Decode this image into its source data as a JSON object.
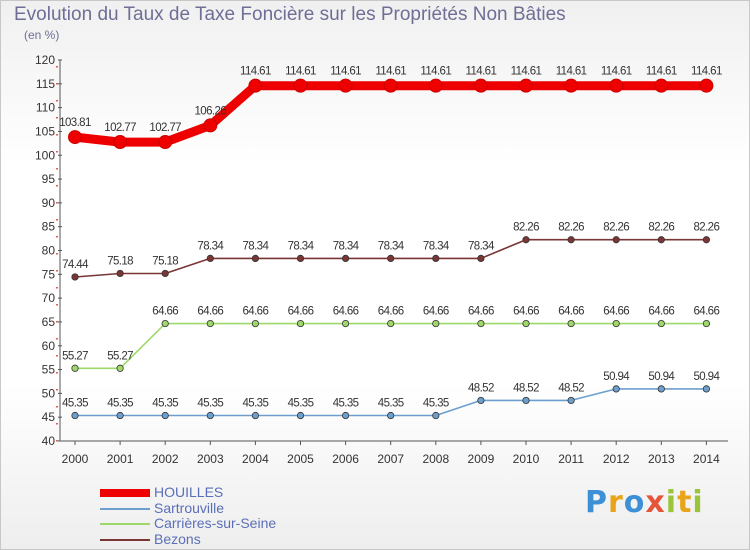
{
  "header": {
    "title": "Evolution du Taux de Taxe Foncière sur les Propriétés Non Bâties",
    "unit": "(en %)"
  },
  "logo": {
    "text": "Proxiti",
    "colors": [
      "#3d8fd6",
      "#e8a51a",
      "#3d8fd6",
      "#e5553a",
      "#9ac43a",
      "#e8a51a",
      "#9ac43a"
    ]
  },
  "chart_data": {
    "type": "line",
    "title": "Evolution du Taux de Taxe Foncière sur les Propriétés Non Bâties",
    "ylabel": "(en %)",
    "xlabel": "",
    "ylim": [
      40,
      120
    ],
    "yticks": [
      40,
      45,
      50,
      55,
      60,
      65,
      70,
      75,
      80,
      85,
      90,
      95,
      100,
      105,
      110,
      115,
      120
    ],
    "categories": [
      "2000",
      "2001",
      "2002",
      "2003",
      "2004",
      "2005",
      "2006",
      "2007",
      "2008",
      "2009",
      "2010",
      "2011",
      "2012",
      "2013",
      "2014"
    ],
    "series": [
      {
        "name": "HOUILLES",
        "color": "#ee0000",
        "values": [
          103.81,
          102.77,
          102.77,
          106.26,
          114.61,
          114.61,
          114.61,
          114.61,
          114.61,
          114.61,
          114.61,
          114.61,
          114.61,
          114.61,
          114.61
        ],
        "labels": [
          "103.81",
          "102.77",
          "102.77",
          "106.26",
          "114.61",
          "114.61",
          "114.61",
          "114.61",
          "114.61",
          "114.61",
          "114.61",
          "114.61",
          "114.61",
          "114.61",
          "114.61"
        ]
      },
      {
        "name": "Sartrouville",
        "color": "#6c9fce",
        "values": [
          45.35,
          45.35,
          45.35,
          45.35,
          45.35,
          45.35,
          45.35,
          45.35,
          45.35,
          48.52,
          48.52,
          48.52,
          50.94,
          50.94,
          50.94
        ],
        "labels": [
          "45.35",
          "45.35",
          "45.35",
          "45.35",
          "45.35",
          "45.35",
          "45.35",
          "45.35",
          "45.35",
          "48.52",
          "48.52",
          "48.52",
          "50.94",
          "50.94",
          "50.94"
        ]
      },
      {
        "name": "Carrières-sur-Seine",
        "color": "#9fd86a",
        "values": [
          55.27,
          55.27,
          64.66,
          64.66,
          64.66,
          64.66,
          64.66,
          64.66,
          64.66,
          64.66,
          64.66,
          64.66,
          64.66,
          64.66,
          64.66
        ],
        "labels": [
          "55.27",
          "55.27",
          "64.66",
          "64.66",
          "64.66",
          "64.66",
          "64.66",
          "64.66",
          "64.66",
          "64.66",
          "64.66",
          "64.66",
          "64.66",
          "64.66",
          "64.66"
        ]
      },
      {
        "name": "Bezons",
        "color": "#7a3535",
        "values": [
          74.44,
          75.18,
          75.18,
          78.34,
          78.34,
          78.34,
          78.34,
          78.34,
          78.34,
          78.34,
          82.26,
          82.26,
          82.26,
          82.26,
          82.26
        ],
        "labels": [
          "74.44",
          "75.18",
          "75.18",
          "78.34",
          "78.34",
          "78.34",
          "78.34",
          "78.34",
          "78.34",
          "78.34",
          "82.26",
          "82.26",
          "82.26",
          "82.26",
          "82.26"
        ]
      }
    ],
    "legend": [
      "HOUILLES",
      "Sartrouville",
      "Carrières-sur-Seine",
      "Bezons"
    ],
    "legend_position": "bottom-left",
    "grid": false
  }
}
